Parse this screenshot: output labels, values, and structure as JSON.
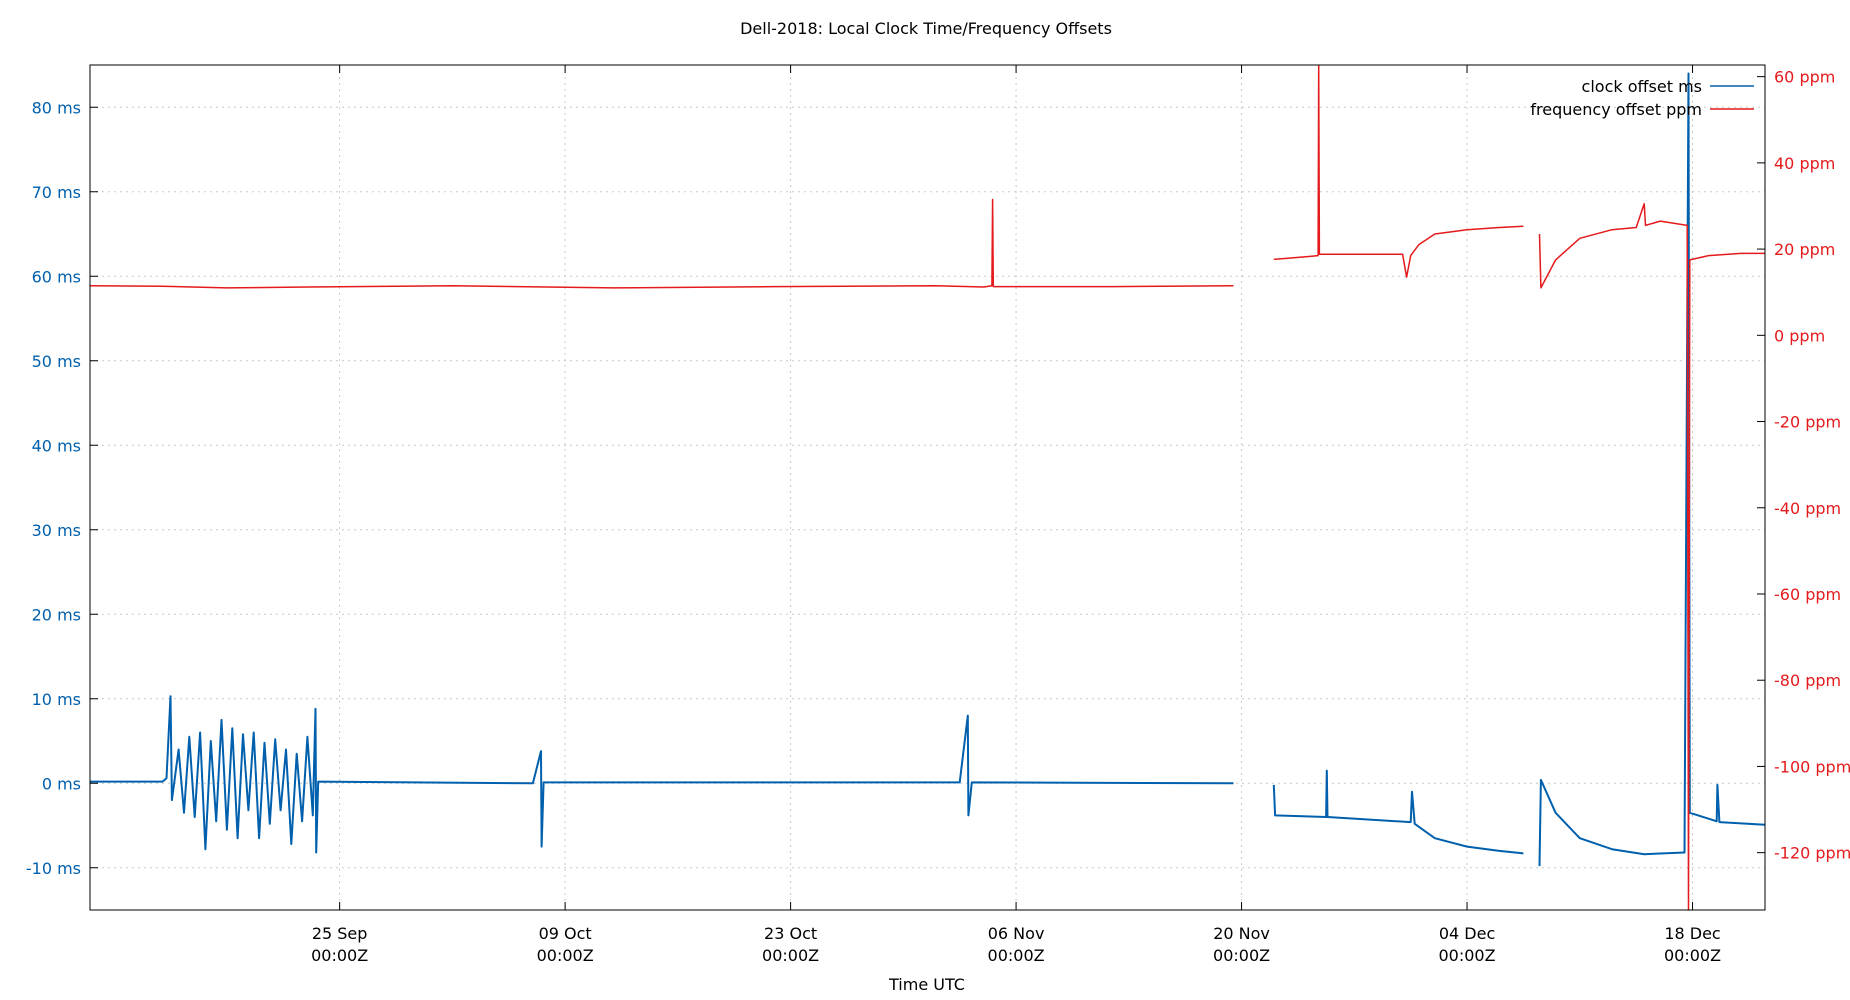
{
  "chart_data": {
    "type": "line",
    "title": "Dell-2018: Local Clock Time/Frequency Offsets",
    "xlabel": "Time UTC",
    "x_axis": {
      "type": "date",
      "range": [
        "2025-09-09T12:00Z",
        "2025-12-22T12:00Z"
      ],
      "ticks": [
        {
          "date": "2025-09-25T00:00Z",
          "line1": "25 Sep",
          "line2": "00:00Z"
        },
        {
          "date": "2025-10-09T00:00Z",
          "line1": "09 Oct",
          "line2": "00:00Z"
        },
        {
          "date": "2025-10-23T00:00Z",
          "line1": "23 Oct",
          "line2": "00:00Z"
        },
        {
          "date": "2025-11-06T00:00Z",
          "line1": "06 Nov",
          "line2": "00:00Z"
        },
        {
          "date": "2025-11-20T00:00Z",
          "line1": "20 Nov",
          "line2": "00:00Z"
        },
        {
          "date": "2025-12-04T00:00Z",
          "line1": "04 Dec",
          "line2": "00:00Z"
        },
        {
          "date": "2025-12-18T00:00Z",
          "line1": "18 Dec",
          "line2": "00:00Z"
        }
      ]
    },
    "y_left": {
      "unit": "ms",
      "range": [
        -15,
        85
      ],
      "ticks": [
        -10,
        0,
        10,
        20,
        30,
        40,
        50,
        60,
        70,
        80
      ],
      "labels": [
        "-10 ms",
        "0 ms",
        "10 ms",
        "20 ms",
        "30 ms",
        "40 ms",
        "50 ms",
        "60 ms",
        "70 ms",
        "80 ms"
      ],
      "color": "#0060ad"
    },
    "y_right": {
      "unit": "ppm",
      "range": [
        -133.3,
        62.7
      ],
      "ticks": [
        -120,
        -100,
        -80,
        -60,
        -40,
        -20,
        0,
        20,
        40,
        60
      ],
      "labels": [
        "-120 ppm",
        "-100 ppm",
        "-80 ppm",
        "-60 ppm",
        "-40 ppm",
        "-20 ppm",
        "0 ppm",
        "20 ppm",
        "40 ppm",
        "60 ppm"
      ],
      "color": "#e41a1c"
    },
    "grid": true,
    "legend_position": "top-right",
    "series": [
      {
        "name": "clock offset ms",
        "axis": "left",
        "color": "#0060ad",
        "points": [
          [
            "2025-09-09T12:00Z",
            0.2
          ],
          [
            "2025-09-14T00:00Z",
            0.2
          ],
          [
            "2025-09-14T06:00Z",
            0.6
          ],
          [
            "2025-09-14T12:00Z",
            10.3
          ],
          [
            "2025-09-14T14:00Z",
            -2.0
          ],
          [
            "2025-09-15T00:00Z",
            4.0
          ],
          [
            "2025-09-15T08:00Z",
            -3.5
          ],
          [
            "2025-09-15T16:00Z",
            5.5
          ],
          [
            "2025-09-16T00:00Z",
            -4.0
          ],
          [
            "2025-09-16T08:00Z",
            6.0
          ],
          [
            "2025-09-16T16:00Z",
            -7.8
          ],
          [
            "2025-09-17T00:00Z",
            5.0
          ],
          [
            "2025-09-17T08:00Z",
            -4.5
          ],
          [
            "2025-09-17T16:00Z",
            7.5
          ],
          [
            "2025-09-18T00:00Z",
            -5.5
          ],
          [
            "2025-09-18T08:00Z",
            6.5
          ],
          [
            "2025-09-18T16:00Z",
            -6.5
          ],
          [
            "2025-09-19T00:00Z",
            5.8
          ],
          [
            "2025-09-19T08:00Z",
            -3.2
          ],
          [
            "2025-09-19T16:00Z",
            6.0
          ],
          [
            "2025-09-20T00:00Z",
            -6.5
          ],
          [
            "2025-09-20T08:00Z",
            4.8
          ],
          [
            "2025-09-20T16:00Z",
            -4.8
          ],
          [
            "2025-09-21T00:00Z",
            5.2
          ],
          [
            "2025-09-21T08:00Z",
            -3.2
          ],
          [
            "2025-09-21T16:00Z",
            4.0
          ],
          [
            "2025-09-22T00:00Z",
            -7.2
          ],
          [
            "2025-09-22T08:00Z",
            3.5
          ],
          [
            "2025-09-22T16:00Z",
            -4.5
          ],
          [
            "2025-09-23T00:00Z",
            5.5
          ],
          [
            "2025-09-23T08:00Z",
            -3.8
          ],
          [
            "2025-09-23T12:00Z",
            8.8
          ],
          [
            "2025-09-23T13:00Z",
            -8.2
          ],
          [
            "2025-09-23T16:00Z",
            0.2
          ],
          [
            "2025-10-07T00:00Z",
            0.0
          ],
          [
            "2025-10-07T12:00Z",
            3.8
          ],
          [
            "2025-10-07T13:00Z",
            -7.5
          ],
          [
            "2025-10-07T16:00Z",
            0.1
          ],
          [
            "2025-11-02T12:00Z",
            0.1
          ],
          [
            "2025-11-03T00:00Z",
            8.0
          ],
          [
            "2025-11-03T01:00Z",
            -3.8
          ],
          [
            "2025-11-03T06:00Z",
            0.1
          ],
          [
            "2025-11-19T12:00Z",
            0.0
          ],
          null,
          [
            "2025-11-22T00:00Z",
            -0.2
          ],
          [
            "2025-11-22T02:00Z",
            -3.8
          ],
          [
            "2025-11-25T06:00Z",
            -4.0
          ],
          [
            "2025-11-25T07:00Z",
            1.5
          ],
          [
            "2025-11-25T08:00Z",
            -4.0
          ],
          [
            "2025-11-30T12:00Z",
            -4.6
          ],
          [
            "2025-11-30T14:00Z",
            -1.0
          ],
          [
            "2025-11-30T18:00Z",
            -4.8
          ],
          [
            "2025-12-02T00:00Z",
            -6.5
          ],
          [
            "2025-12-04T00:00Z",
            -7.5
          ],
          [
            "2025-12-06T00:00Z",
            -8.0
          ],
          [
            "2025-12-07T12:00Z",
            -8.3
          ],
          null,
          [
            "2025-12-08T12:00Z",
            -9.8
          ],
          [
            "2025-12-08T14:00Z",
            0.4
          ],
          [
            "2025-12-09T12:00Z",
            -3.5
          ],
          [
            "2025-12-11T00:00Z",
            -6.5
          ],
          [
            "2025-12-13T00:00Z",
            -7.8
          ],
          [
            "2025-12-15T00:00Z",
            -8.4
          ],
          [
            "2025-12-17T12:00Z",
            -8.2
          ],
          [
            "2025-12-17T18:00Z",
            84.0
          ],
          [
            "2025-12-17T20:00Z",
            -3.5
          ],
          [
            "2025-12-19T00:00Z",
            -4.2
          ],
          [
            "2025-12-19T12:00Z",
            -4.5
          ],
          [
            "2025-12-19T13:00Z",
            -0.2
          ],
          [
            "2025-12-19T16:00Z",
            -4.6
          ],
          [
            "2025-12-22T12:00Z",
            -4.9
          ]
        ]
      },
      {
        "name": "frequency offset ppm",
        "axis": "right",
        "color": "#e41a1c",
        "points": [
          [
            "2025-09-09T12:00Z",
            11.5
          ],
          [
            "2025-09-14T00:00Z",
            11.4
          ],
          [
            "2025-09-18T00:00Z",
            11.0
          ],
          [
            "2025-09-23T00:00Z",
            11.2
          ],
          [
            "2025-10-02T00:00Z",
            11.5
          ],
          [
            "2025-10-12T00:00Z",
            11.0
          ],
          [
            "2025-10-22T00:00Z",
            11.3
          ],
          [
            "2025-11-01T00:00Z",
            11.5
          ],
          [
            "2025-11-04T00:00Z",
            11.2
          ],
          [
            "2025-11-04T12:00Z",
            11.5
          ],
          [
            "2025-11-04T13:00Z",
            31.5
          ],
          [
            "2025-11-04T14:00Z",
            11.3
          ],
          [
            "2025-11-12T00:00Z",
            11.3
          ],
          [
            "2025-11-19T12:00Z",
            11.5
          ],
          null,
          [
            "2025-11-22T00:00Z",
            17.6
          ],
          [
            "2025-11-24T00:00Z",
            18.2
          ],
          [
            "2025-11-24T18:00Z",
            18.5
          ],
          [
            "2025-11-24T19:00Z",
            62.5
          ],
          [
            "2025-11-24T20:00Z",
            18.8
          ],
          [
            "2025-11-30T00:00Z",
            18.8
          ],
          [
            "2025-11-30T06:00Z",
            13.5
          ],
          [
            "2025-11-30T12:00Z",
            18.5
          ],
          [
            "2025-12-01T00:00Z",
            21.0
          ],
          [
            "2025-12-02T00:00Z",
            23.5
          ],
          [
            "2025-12-04T00:00Z",
            24.5
          ],
          [
            "2025-12-06T00:00Z",
            25.0
          ],
          [
            "2025-12-07T12:00Z",
            25.3
          ],
          null,
          [
            "2025-12-08T12:00Z",
            23.5
          ],
          [
            "2025-12-08T14:00Z",
            11.0
          ],
          [
            "2025-12-09T12:00Z",
            17.5
          ],
          [
            "2025-12-11T00:00Z",
            22.5
          ],
          [
            "2025-12-13T00:00Z",
            24.5
          ],
          [
            "2025-12-14T12:00Z",
            25.0
          ],
          [
            "2025-12-15T00:00Z",
            30.5
          ],
          [
            "2025-12-15T02:00Z",
            25.5
          ],
          [
            "2025-12-16T00:00Z",
            26.5
          ],
          [
            "2025-12-17T16:00Z",
            25.5
          ],
          [
            "2025-12-17T18:00Z",
            -133.3
          ],
          [
            "2025-12-17T20:00Z",
            17.5
          ],
          [
            "2025-12-19T00:00Z",
            18.5
          ],
          [
            "2025-12-21T00:00Z",
            19.0
          ],
          [
            "2025-12-22T12:00Z",
            19.0
          ]
        ]
      }
    ]
  }
}
